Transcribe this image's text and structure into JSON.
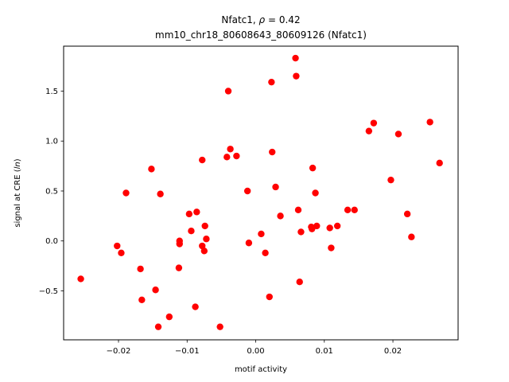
{
  "chart_data": {
    "type": "scatter",
    "title_line1_prefix": "Nfatc1, ",
    "title_rho_symbol": "ρ",
    "title_rho_value": " = 0.42",
    "title_line2": "mm10_chr18_80608643_80609126 (Nfatc1)",
    "xlabel": "motif activity",
    "ylabel_prefix": "signal at CRE (",
    "ylabel_italic": "ln",
    "ylabel_suffix": ")",
    "xlim": [
      -0.028,
      0.0295
    ],
    "ylim": [
      -0.99,
      1.95
    ],
    "x_ticks": [
      -0.02,
      -0.01,
      0.0,
      0.01,
      0.02
    ],
    "x_tick_labels": [
      "−0.02",
      "−0.01",
      "0.00",
      "0.01",
      "0.02"
    ],
    "y_ticks": [
      -0.5,
      0.0,
      0.5,
      1.0,
      1.5
    ],
    "y_tick_labels": [
      "−0.5",
      "0.0",
      "0.5",
      "1.0",
      "1.5"
    ],
    "grid": false,
    "marker_color": "#ff0000",
    "points": [
      [
        -0.0255,
        -0.38
      ],
      [
        -0.0202,
        -0.05
      ],
      [
        -0.0196,
        -0.12
      ],
      [
        -0.0189,
        0.48
      ],
      [
        -0.0168,
        -0.28
      ],
      [
        -0.0166,
        -0.59
      ],
      [
        -0.0152,
        0.72
      ],
      [
        -0.0146,
        -0.49
      ],
      [
        -0.0142,
        -0.86
      ],
      [
        -0.0139,
        0.47
      ],
      [
        -0.0126,
        -0.76
      ],
      [
        -0.0112,
        -0.27
      ],
      [
        -0.0111,
        -0.03
      ],
      [
        -0.0111,
        0.0
      ],
      [
        -0.0097,
        0.27
      ],
      [
        -0.0094,
        0.1
      ],
      [
        -0.0088,
        -0.66
      ],
      [
        -0.0086,
        0.29
      ],
      [
        -0.0078,
        0.81
      ],
      [
        -0.0078,
        -0.05
      ],
      [
        -0.0075,
        -0.1
      ],
      [
        -0.0074,
        0.15
      ],
      [
        -0.0072,
        0.02
      ],
      [
        -0.0052,
        -0.86
      ],
      [
        -0.0042,
        0.84
      ],
      [
        -0.004,
        1.5
      ],
      [
        -0.0037,
        0.92
      ],
      [
        -0.0028,
        0.85
      ],
      [
        -0.0012,
        0.5
      ],
      [
        -0.001,
        -0.02
      ],
      [
        0.0008,
        0.07
      ],
      [
        0.0014,
        -0.12
      ],
      [
        0.002,
        -0.56
      ],
      [
        0.0023,
        1.59
      ],
      [
        0.0024,
        0.89
      ],
      [
        0.0029,
        0.54
      ],
      [
        0.0036,
        0.25
      ],
      [
        0.0058,
        1.83
      ],
      [
        0.0059,
        1.65
      ],
      [
        0.0062,
        0.31
      ],
      [
        0.0064,
        -0.41
      ],
      [
        0.0066,
        0.09
      ],
      [
        0.0081,
        0.14
      ],
      [
        0.0082,
        0.12
      ],
      [
        0.0083,
        0.73
      ],
      [
        0.0087,
        0.48
      ],
      [
        0.0089,
        0.15
      ],
      [
        0.0108,
        0.13
      ],
      [
        0.011,
        -0.07
      ],
      [
        0.0119,
        0.15
      ],
      [
        0.0134,
        0.31
      ],
      [
        0.0144,
        0.31
      ],
      [
        0.0165,
        1.1
      ],
      [
        0.0172,
        1.18
      ],
      [
        0.0197,
        0.61
      ],
      [
        0.0208,
        1.07
      ],
      [
        0.0221,
        0.27
      ],
      [
        0.0227,
        0.04
      ],
      [
        0.0254,
        1.19
      ],
      [
        0.0268,
        0.78
      ]
    ]
  }
}
